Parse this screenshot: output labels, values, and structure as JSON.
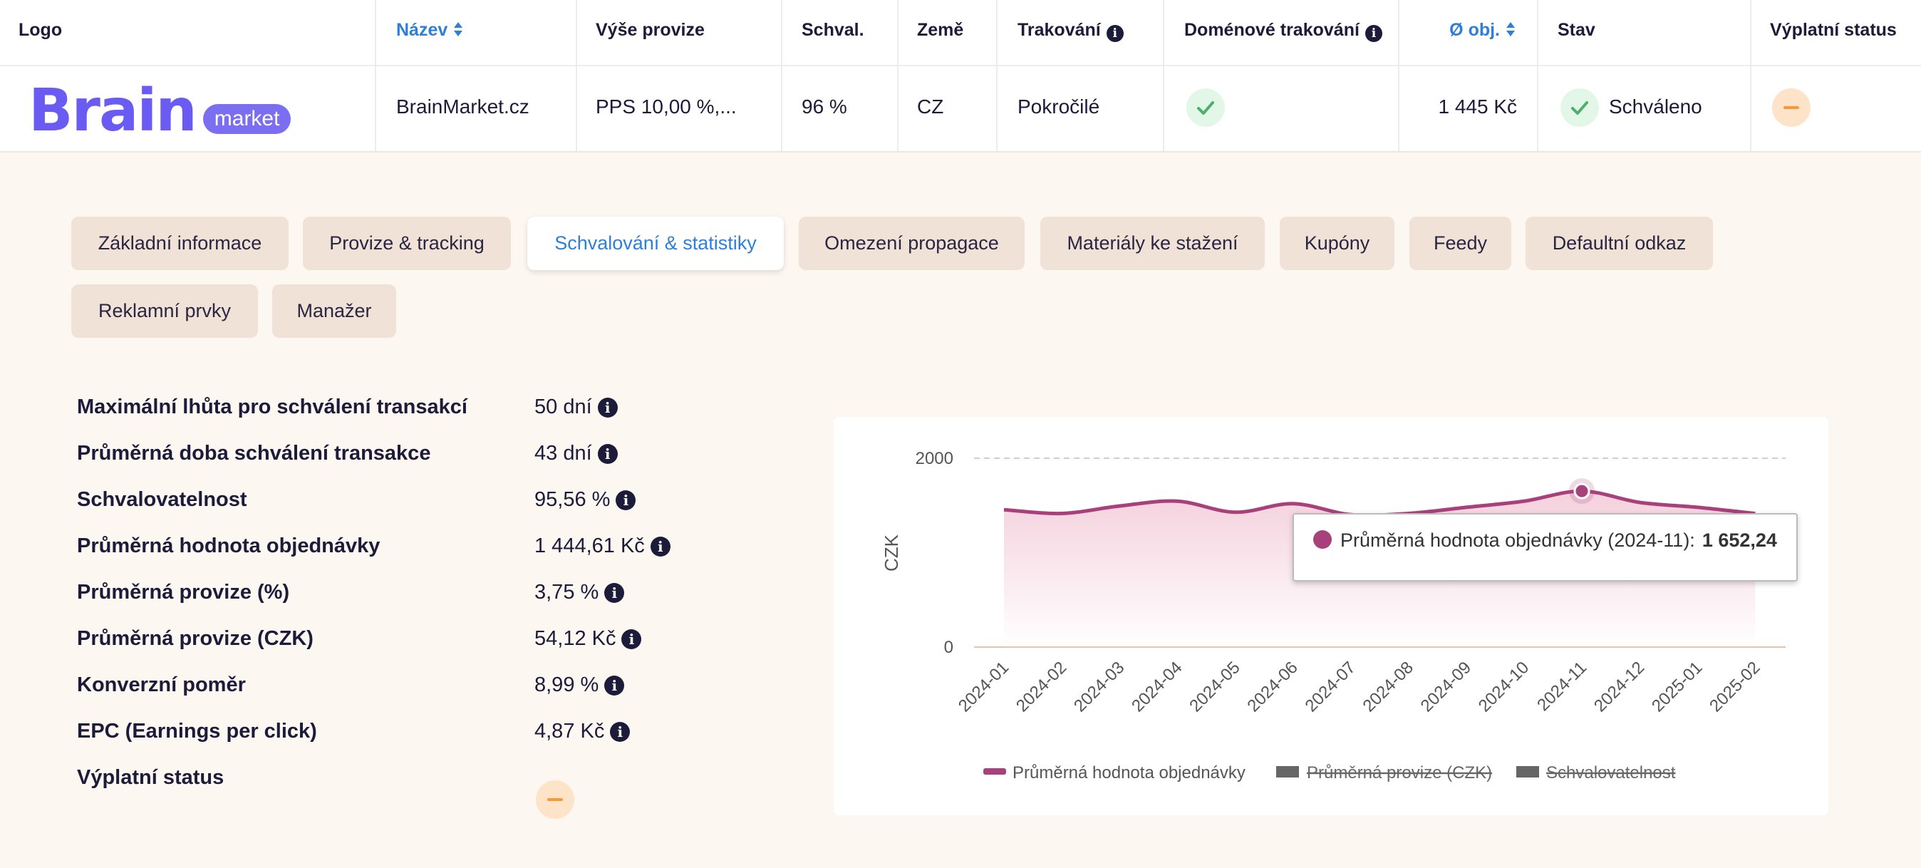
{
  "table": {
    "headers": [
      "Logo",
      "Název",
      "Výše provize",
      "Schval.",
      "Země",
      "Trakování",
      "Doménové trakování",
      "Ø obj.",
      "Stav",
      "Výplatní status"
    ],
    "row": {
      "logo": {
        "name": "Brain",
        "tag": "market"
      },
      "name": "BrainMarket.cz",
      "commission": "PPS 10,00 %,...",
      "approval": "96 %",
      "country": "CZ",
      "tracking": "Pokročilé",
      "avg_order": "1 445 Kč",
      "status": "Schváleno"
    }
  },
  "tabs": [
    {
      "label": "Základní informace"
    },
    {
      "label": "Provize & tracking"
    },
    {
      "label": "Schvalování & statistiky",
      "active": true
    },
    {
      "label": "Omezení propagace"
    },
    {
      "label": "Materiály ke stažení"
    },
    {
      "label": "Kupóny"
    },
    {
      "label": "Feedy"
    },
    {
      "label": "Defaultní odkaz"
    },
    {
      "label": "Reklamní prvky"
    },
    {
      "label": "Manažer"
    }
  ],
  "stats": [
    {
      "label": "Maximální lhůta pro schválení transakcí",
      "value": "50 dní"
    },
    {
      "label": "Průměrná doba schválení transakce",
      "value": "43 dní"
    },
    {
      "label": "Schvalovatelnost",
      "value": "95,56 %"
    },
    {
      "label": "Průměrná hodnota objednávky",
      "value": "1 444,61 Kč"
    },
    {
      "label": "Průměrná provize (%)",
      "value": "3,75 %"
    },
    {
      "label": "Průměrná provize (CZK)",
      "value": "54,12 Kč"
    },
    {
      "label": "Konverzní poměr",
      "value": "8,99 %"
    },
    {
      "label": "EPC (Earnings per click)",
      "value": "4,87 Kč"
    },
    {
      "label": "Výplatní status"
    }
  ],
  "chart_data": {
    "type": "line",
    "y_label": "CZK",
    "categories": [
      "2024-01",
      "2024-02",
      "2024-03",
      "2024-04",
      "2024-05",
      "2024-06",
      "2024-07",
      "2024-08",
      "2024-09",
      "2024-10",
      "2024-11",
      "2024-12",
      "2025-01",
      "2025-02"
    ],
    "series": [
      {
        "name": "Průměrná hodnota objednávky",
        "color": "#a8407c",
        "values": [
          1455,
          1415,
          1494,
          1545,
          1428,
          1519,
          1403,
          1415,
          1480,
          1545,
          1652.24,
          1532,
          1480,
          1415
        ]
      }
    ],
    "hidden_series": [
      {
        "name": "Průměrná provize (CZK)",
        "color": "#666666"
      },
      {
        "name": "Schvalovatelnost",
        "color": "#666666"
      }
    ],
    "ylim": [
      0,
      2000
    ],
    "yticks": [
      0,
      2000
    ],
    "tooltip": {
      "text": "Průměrná hodnota objednávky (2024-11):",
      "value": "1 652,24"
    }
  }
}
